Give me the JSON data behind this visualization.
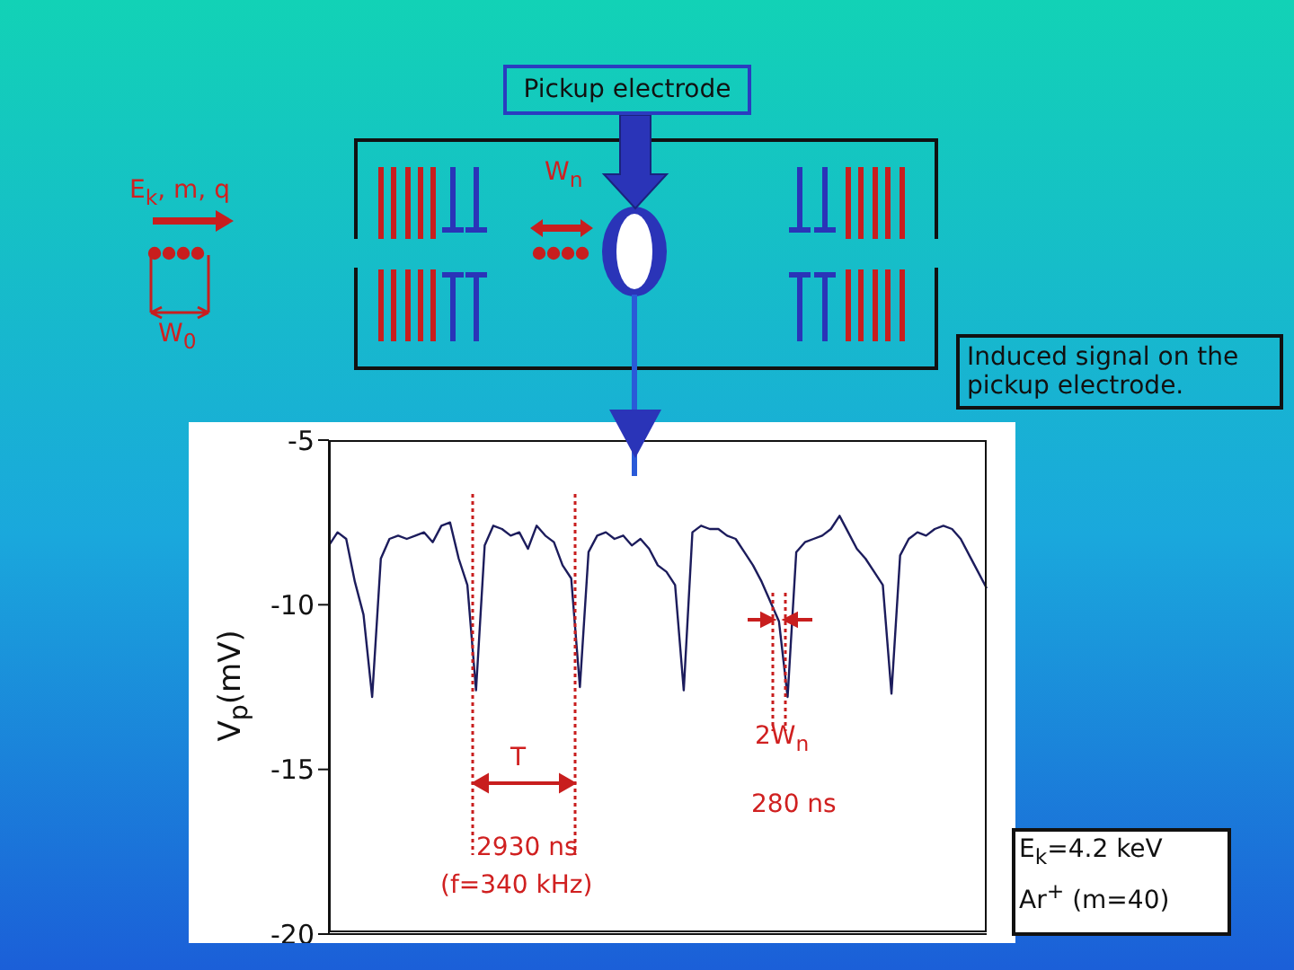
{
  "chart_data": {
    "type": "line",
    "ylabel": "V$_{p}$(mV)",
    "categories": [
      null,
      null,
      null,
      null,
      null,
      null,
      null,
      null,
      null,
      null,
      null,
      null,
      null,
      null,
      null,
      null,
      null,
      null,
      null,
      null,
      null,
      null,
      null,
      null,
      null,
      null,
      null,
      null,
      null,
      null,
      null,
      null,
      null,
      null,
      null,
      null,
      null,
      null,
      null,
      null,
      null,
      null,
      null,
      null,
      null,
      null,
      null,
      null,
      null,
      null,
      null,
      null,
      null,
      null,
      null,
      null,
      null,
      null,
      null,
      null,
      null,
      null,
      null,
      null,
      null,
      null,
      null,
      null,
      null,
      null,
      null,
      null,
      null,
      null,
      null,
      null,
      null
    ],
    "series": [
      {
        "color": "#1c1c5c",
        "values": [
          -8.2,
          -7.8,
          -8.0,
          -9.3,
          -10.3,
          -12.8,
          -8.6,
          -8.0,
          -7.9,
          -8.0,
          -7.9,
          -7.8,
          -8.1,
          -7.6,
          -7.5,
          -8.6,
          -9.4,
          -12.6,
          -8.2,
          -7.6,
          -7.7,
          -7.9,
          -7.8,
          -8.3,
          -7.6,
          -7.9,
          -8.1,
          -8.8,
          -9.2,
          -12.5,
          -8.4,
          -7.9,
          -7.8,
          -8.0,
          -7.9,
          -8.2,
          -8.0,
          -8.3,
          -8.8,
          -9.0,
          -9.4,
          -12.6,
          -7.8,
          -7.6,
          -7.7,
          -7.7,
          -7.9,
          -8.0,
          -8.4,
          -8.8,
          -9.3,
          -9.9,
          -10.5,
          -12.8,
          -8.4,
          -8.1,
          -8.0,
          -7.9,
          -7.7,
          -7.3,
          -7.8,
          -8.3,
          -8.6,
          -9.0,
          -9.4,
          -12.7,
          -8.5,
          -8.0,
          -7.8,
          -7.9,
          -7.7,
          -7.6,
          -7.7,
          -8.0,
          -8.5,
          -9.0,
          -9.5
        ]
      }
    ],
    "ylim": [
      -20,
      -5
    ],
    "yticks": [
      -20,
      -15,
      -10,
      -5
    ],
    "tick_labels": "y",
    "annotations": [
      "Pickup electrode",
      "E$_{k}$, m, q",
      "W$_{n}$",
      "W$_{0}$",
      "Induced signal on the pickup electrode.",
      "T",
      "2930 ns",
      "(f=340 kHz)",
      "2W$_{n}$",
      "280 ns",
      "E$_{k}$=4.2 keV",
      "Ar$^{+}$ (m=40)"
    ]
  }
}
